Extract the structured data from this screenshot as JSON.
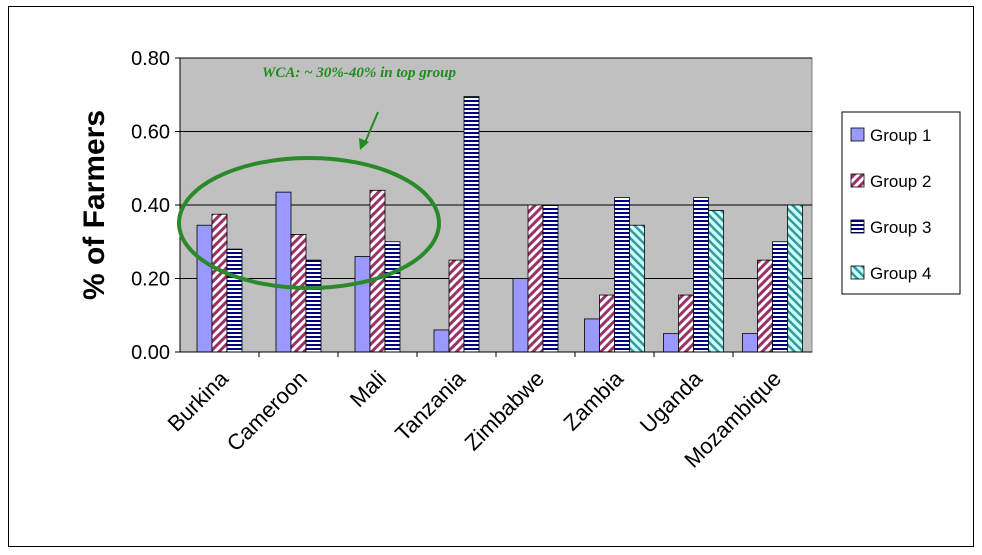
{
  "chart_data": {
    "type": "bar",
    "title": "",
    "xlabel": "",
    "ylabel": "% of Farmers",
    "ylim": [
      0,
      0.8
    ],
    "yticks": [
      "0.00",
      "0.20",
      "0.40",
      "0.60",
      "0.80"
    ],
    "grid": true,
    "legend_position": "right",
    "categories": [
      "Burkina",
      "Cameroon",
      "Mali",
      "Tanzania",
      "Zimbabwe",
      "Zambia",
      "Uganda",
      "Mozambique"
    ],
    "series": [
      {
        "name": "Group 1",
        "values": [
          0.345,
          0.435,
          0.26,
          0.06,
          0.2,
          0.09,
          0.05,
          0.05
        ]
      },
      {
        "name": "Group 2",
        "values": [
          0.375,
          0.32,
          0.44,
          0.25,
          0.4,
          0.155,
          0.155,
          0.25
        ]
      },
      {
        "name": "Group 3",
        "values": [
          0.28,
          0.25,
          0.3,
          0.695,
          0.4,
          0.42,
          0.42,
          0.3
        ]
      },
      {
        "name": "Group 4",
        "values": [
          null,
          null,
          null,
          null,
          null,
          0.345,
          0.385,
          0.4
        ]
      }
    ],
    "annotation": {
      "text": "WCA: ~ 30%-40% in top group"
    }
  },
  "colors": {
    "plot_bg": "#c0c0c0",
    "group1": "#9999ff",
    "group2": "#993366",
    "group3": "#000080",
    "group4": "#339999",
    "annotation": "#1e8c1e"
  }
}
